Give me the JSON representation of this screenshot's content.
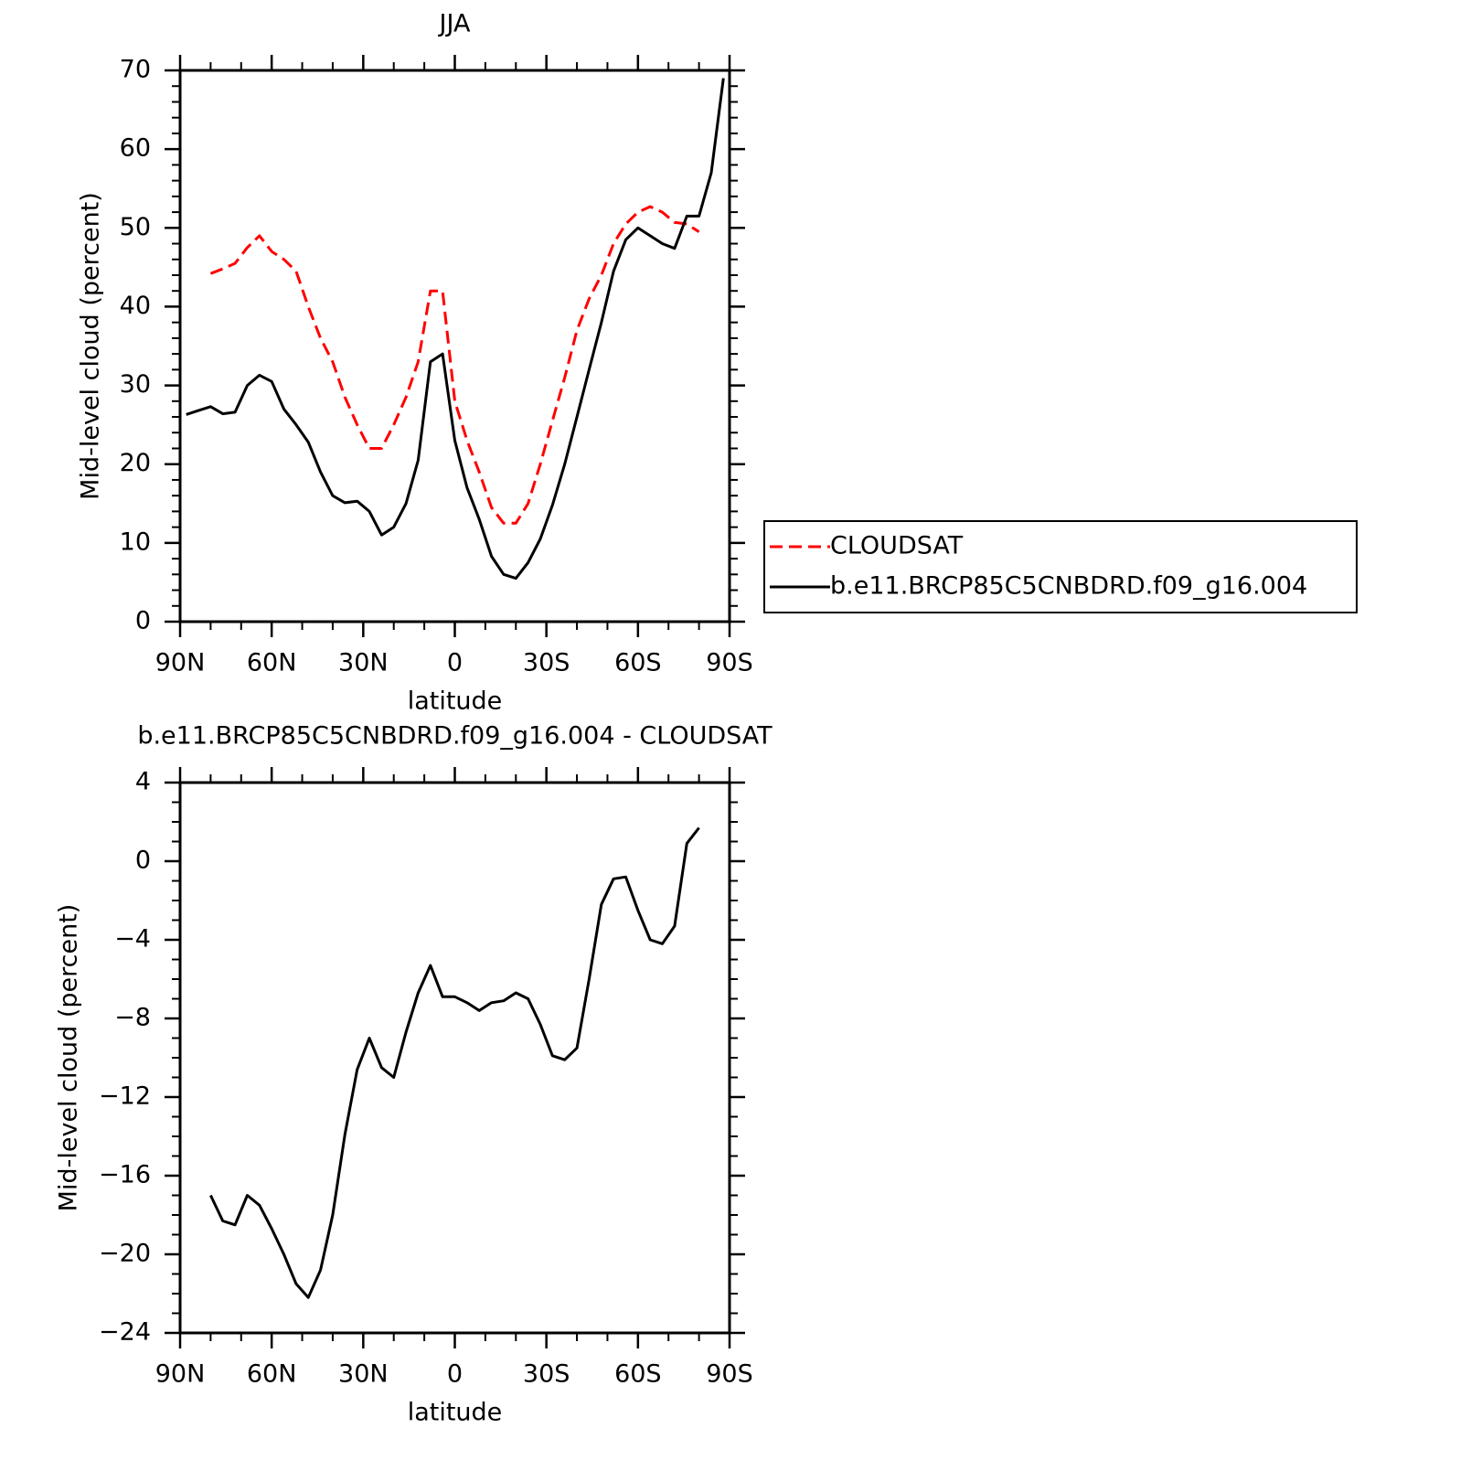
{
  "chart_data": [
    {
      "type": "line",
      "title": "JJA",
      "x_label": "latitude",
      "y_label": "Mid-level cloud (percent)",
      "x": [
        88,
        84,
        80,
        76,
        72,
        68,
        64,
        60,
        56,
        52,
        48,
        44,
        40,
        36,
        32,
        28,
        24,
        20,
        16,
        12,
        8,
        4,
        0,
        -4,
        -8,
        -12,
        -16,
        -20,
        -24,
        -28,
        -32,
        -36,
        -40,
        -44,
        -48,
        -52,
        -56,
        -60,
        -64,
        -68,
        -72,
        -76,
        -80,
        -84,
        -88
      ],
      "xlim": [
        90,
        -90
      ],
      "xticks": [
        {
          "value": 90,
          "label": "90N"
        },
        {
          "value": 60,
          "label": "60N"
        },
        {
          "value": 30,
          "label": "30N"
        },
        0,
        {
          "value": -30,
          "label": "30S"
        },
        {
          "value": -60,
          "label": "60S"
        },
        {
          "value": -90,
          "label": "90S"
        }
      ],
      "ylim": [
        0,
        70
      ],
      "yticks": [
        0,
        10,
        20,
        30,
        40,
        50,
        60,
        70
      ],
      "legend": "right",
      "series": [
        {
          "name": "CLOUDSAT",
          "color": "#ff0000",
          "dashed": true,
          "values": [
            null,
            null,
            44.2,
            44.8,
            45.5,
            47.5,
            49,
            47,
            46,
            44.5,
            40,
            36,
            33,
            28.5,
            25,
            22,
            22,
            25,
            28.5,
            33,
            42,
            42,
            28,
            23,
            19,
            14.5,
            12.5,
            12.5,
            15,
            20,
            25.5,
            31,
            37,
            41,
            44,
            48,
            50.5,
            52,
            52.7,
            52,
            50.7,
            50.5,
            49.5,
            null,
            null
          ]
        },
        {
          "name": "b.e11.BRCP85C5CNBDRD.f09_g16.004",
          "color": "#000000",
          "dashed": false,
          "values": [
            26.3,
            26.8,
            27.3,
            26.4,
            26.6,
            30,
            31.3,
            30.5,
            27,
            25,
            22.8,
            19,
            16,
            15.1,
            15.3,
            14,
            11,
            12,
            15,
            20.5,
            33,
            34,
            23,
            17,
            13,
            8.3,
            6,
            5.5,
            7.5,
            10.5,
            14.8,
            20,
            26,
            32,
            38,
            44.5,
            48.5,
            50,
            49,
            48,
            47.4,
            51.5,
            51.5,
            57,
            69
          ]
        }
      ]
    },
    {
      "type": "line",
      "title": "b.e11.BRCP85C5CNBDRD.f09_g16.004 - CLOUDSAT",
      "x_label": "latitude",
      "y_label": "Mid-level cloud (percent)",
      "x": [
        88,
        84,
        80,
        76,
        72,
        68,
        64,
        60,
        56,
        52,
        48,
        44,
        40,
        36,
        32,
        28,
        24,
        20,
        16,
        12,
        8,
        4,
        0,
        -4,
        -8,
        -12,
        -16,
        -20,
        -24,
        -28,
        -32,
        -36,
        -40,
        -44,
        -48,
        -52,
        -56,
        -60,
        -64,
        -68,
        -72,
        -76,
        -80,
        -84,
        -88
      ],
      "xlim": [
        90,
        -90
      ],
      "xticks": [
        {
          "value": 90,
          "label": "90N"
        },
        {
          "value": 60,
          "label": "60N"
        },
        {
          "value": 30,
          "label": "30N"
        },
        0,
        {
          "value": -30,
          "label": "30S"
        },
        {
          "value": -60,
          "label": "60S"
        },
        {
          "value": -90,
          "label": "90S"
        }
      ],
      "ylim": [
        -24,
        4
      ],
      "yticks": [
        {
          "value": -24,
          "label": "−24"
        },
        {
          "value": -20,
          "label": "−20"
        },
        {
          "value": -16,
          "label": "−16"
        },
        {
          "value": -12,
          "label": "−12"
        },
        {
          "value": -8,
          "label": "−8"
        },
        {
          "value": -4,
          "label": "−4"
        },
        0,
        4
      ],
      "series": [
        {
          "color": "#000000",
          "dashed": false,
          "values": [
            null,
            null,
            -17,
            -18.3,
            -18.5,
            -17,
            -17.5,
            -18.7,
            -20,
            -21.5,
            -22.2,
            -20.8,
            -18,
            -13.9,
            -10.6,
            -9,
            -10.5,
            -11,
            -8.7,
            -6.7,
            -5.3,
            -6.9,
            -6.9,
            -7.2,
            -7.6,
            -7.2,
            -7.1,
            -6.7,
            -7,
            -8.3,
            -9.9,
            -10.1,
            -9.5,
            -6,
            -2.2,
            -0.9,
            -0.8,
            -2.5,
            -4,
            -4.2,
            -3.3,
            0.9,
            1.7,
            null,
            null
          ]
        }
      ]
    }
  ]
}
